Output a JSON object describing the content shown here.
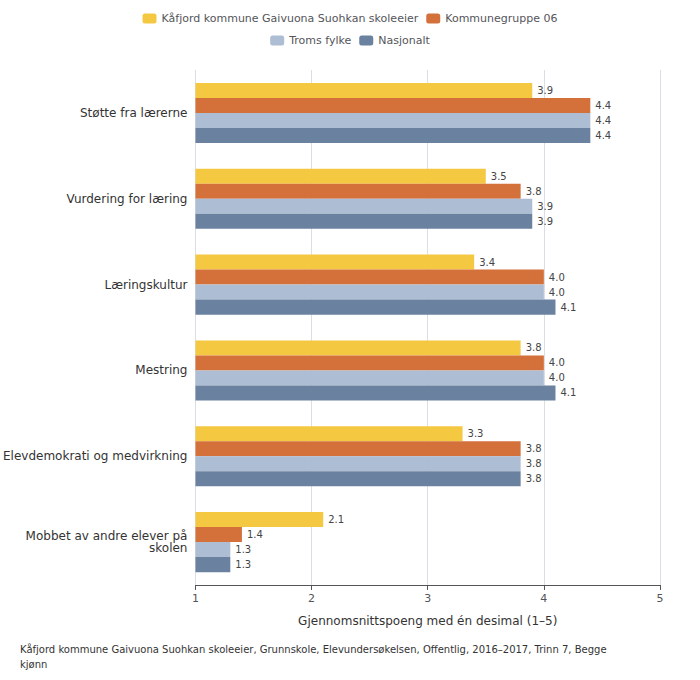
{
  "chart_data": {
    "type": "bar",
    "orientation": "horizontal",
    "categories": [
      "Støtte fra lærerne",
      "Vurdering for læring",
      "Læringskultur",
      "Mestring",
      "Elevdemokrati og medvirkning",
      "Mobbet av andre elever på\nskolen"
    ],
    "series": [
      {
        "name": "Kåfjord kommune Gaivuona Suohkan skoleeier",
        "color": "#F5C842",
        "values": [
          3.9,
          3.5,
          3.4,
          3.8,
          3.3,
          2.1
        ],
        "value_labels": [
          "3.9",
          "3.5",
          "3.4",
          "3.8",
          "3.3",
          "2.1"
        ]
      },
      {
        "name": "Kommunegruppe 06",
        "color": "#D4703A",
        "values": [
          4.4,
          3.8,
          4.0,
          4.0,
          3.8,
          1.4
        ],
        "value_labels": [
          "4.4",
          "3.8",
          "4.0",
          "4.0",
          "3.8",
          "1.4"
        ]
      },
      {
        "name": "Troms fylke",
        "color": "#ADBDD4",
        "values": [
          4.4,
          3.9,
          4.0,
          4.0,
          3.8,
          1.3
        ],
        "value_labels": [
          "4.4",
          "3.9",
          "4.0",
          "4.0",
          "3.8",
          "1.3"
        ]
      },
      {
        "name": "Nasjonalt",
        "color": "#6A82A0",
        "values": [
          4.4,
          3.9,
          4.1,
          4.1,
          3.8,
          1.3
        ],
        "value_labels": [
          "4.4",
          "3.9",
          "4.1",
          "4.1",
          "3.8",
          "1.3"
        ]
      }
    ],
    "xlabel": "Gjennomsnittspoeng med én desimal (1–5)",
    "xlim": [
      1,
      5
    ],
    "xticks": [
      1,
      2,
      3,
      4,
      5
    ],
    "grid": true,
    "legend": "top",
    "data_labels": true,
    "footnote": "Kåfjord kommune Gaivuona Suohkan skoleeier, Grunnskole, Elevundersøkelsen, Offentlig, 2016–2017, Trinn 7, Begge\nkjønn"
  }
}
